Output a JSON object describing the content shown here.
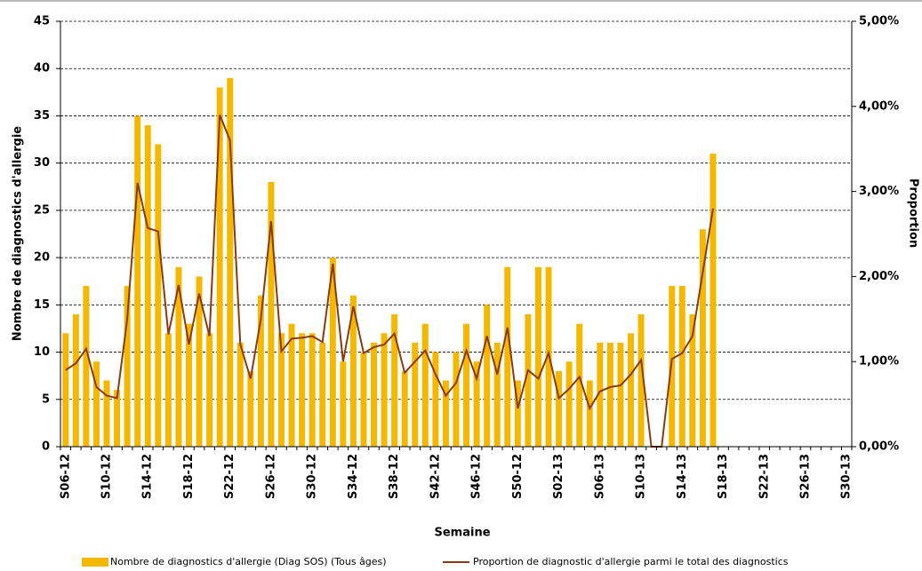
{
  "chart_data": {
    "type": "bar_line",
    "x_label": "Semaine",
    "y_label": "Nombre de diagnostics d'allergie",
    "y2_label": "Proportion",
    "categories": [
      "S06-12",
      null,
      null,
      null,
      "S10-12",
      null,
      null,
      null,
      "S14-12",
      null,
      null,
      null,
      "S18-12",
      null,
      null,
      null,
      "S22-12",
      null,
      null,
      null,
      "S26-12",
      null,
      null,
      null,
      "S30-12",
      null,
      null,
      null,
      "S34-12",
      null,
      null,
      null,
      "S38-12",
      null,
      null,
      null,
      "S42-12",
      null,
      null,
      null,
      "S46-12",
      null,
      null,
      null,
      "S50-12",
      null,
      null,
      null,
      "S02-13",
      null,
      null,
      null,
      "S06-13",
      null,
      null,
      null,
      "S10-13",
      null,
      null,
      null,
      "S14-13",
      null,
      null,
      null,
      "S18-13",
      null,
      null,
      null,
      "S22-13",
      null,
      null,
      null,
      "S26-13",
      null,
      null,
      null,
      "S30-13"
    ],
    "series": [
      {
        "name": "Nombre de diagnostics d'allergie (Diag SOS) (Tous âges)",
        "type": "bar",
        "color": "#f5b800",
        "values": [
          12,
          14,
          17,
          9,
          7,
          6,
          17,
          35,
          34,
          32,
          12,
          19,
          13,
          18,
          12,
          38,
          39,
          11,
          8,
          16,
          28,
          12,
          13,
          12,
          12,
          11,
          20,
          9,
          16,
          10,
          11,
          12,
          14,
          8,
          11,
          13,
          10,
          7,
          10,
          13,
          9,
          15,
          11,
          19,
          7,
          14,
          19,
          19,
          8,
          9,
          13,
          7,
          11,
          11,
          11,
          12,
          14,
          0,
          0,
          17,
          17,
          14,
          23,
          31,
          null,
          null,
          null,
          null,
          null,
          null,
          null,
          null,
          null,
          null,
          null,
          null,
          null
        ]
      },
      {
        "name": "Proportion de diagnostic d'allergie parmi le total des diagnostics",
        "type": "line",
        "axis": "y2",
        "color": "#8b3a0f",
        "values": [
          0.9,
          0.98,
          1.15,
          0.7,
          0.6,
          0.57,
          1.5,
          3.1,
          2.57,
          2.53,
          1.32,
          1.9,
          1.2,
          1.8,
          1.3,
          3.9,
          3.6,
          1.2,
          0.8,
          1.5,
          2.65,
          1.12,
          1.27,
          1.28,
          1.3,
          1.23,
          2.15,
          1.0,
          1.65,
          1.1,
          1.17,
          1.2,
          1.33,
          0.87,
          1.0,
          1.13,
          0.85,
          0.6,
          0.75,
          1.13,
          0.8,
          1.3,
          0.85,
          1.4,
          0.45,
          0.9,
          0.8,
          1.1,
          0.57,
          0.68,
          0.82,
          0.45,
          0.65,
          0.7,
          0.72,
          0.85,
          1.02,
          0.0,
          0.0,
          1.03,
          1.1,
          1.3,
          2.05,
          2.8,
          null,
          null,
          null,
          null,
          null,
          null,
          null,
          null,
          null,
          null,
          null,
          null,
          null
        ]
      }
    ],
    "ylim": [
      0,
      45
    ],
    "yticks": [
      0,
      5,
      10,
      15,
      20,
      25,
      30,
      35,
      40,
      45
    ],
    "y2lim": [
      0,
      5
    ],
    "y2ticks": [
      {
        "value": 0,
        "label": "0,00%"
      },
      {
        "value": 1,
        "label": "1,00%"
      },
      {
        "value": 2,
        "label": "2,00%"
      },
      {
        "value": 3,
        "label": "3,00%"
      },
      {
        "value": 4,
        "label": "4,00%"
      },
      {
        "value": 5,
        "label": "5,00%"
      }
    ],
    "grid": true,
    "legend": "bottom"
  }
}
